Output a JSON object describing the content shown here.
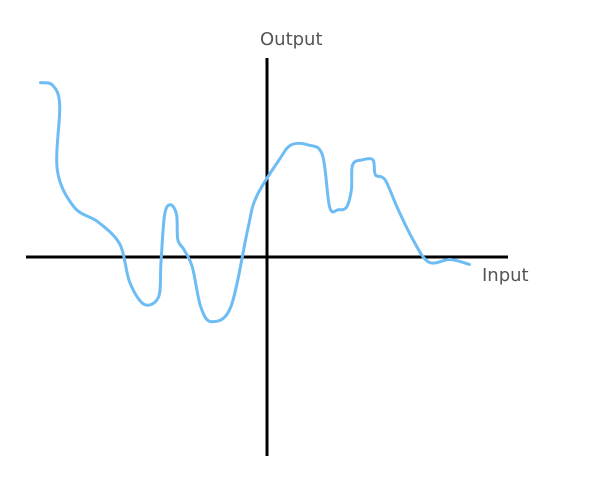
{
  "chart_data": {
    "type": "line",
    "xlabel": "Input",
    "ylabel": "Output",
    "xlim": [
      -10,
      10
    ],
    "ylim": [
      -8,
      8
    ],
    "grid": false,
    "legend": "none",
    "colors": {
      "axis": "#000000",
      "curve": "#6ebcf4",
      "label": "#555555"
    },
    "series": [
      {
        "x": [
          -9.4,
          -8.9,
          -8.6,
          -8.7,
          -8.0,
          -7.0,
          -6.1,
          -5.7,
          -5.1,
          -4.5,
          -4.4,
          -4.25,
          -4.0,
          -3.75,
          -3.7,
          -3.45,
          -3.1,
          -2.75,
          -2.3,
          -1.5,
          -0.8,
          -0.45,
          0.5,
          1.0,
          1.7,
          2.3,
          2.6,
          2.95,
          3.3,
          3.5,
          3.55,
          3.95,
          4.4,
          4.5,
          4.9,
          5.4,
          6.0,
          6.7,
          7.6,
          8.4
        ],
        "y": [
          7.0,
          6.9,
          6.1,
          3.5,
          2.0,
          1.4,
          0.5,
          -1.0,
          -1.9,
          -1.6,
          -0.2,
          1.7,
          2.1,
          1.7,
          0.7,
          0.3,
          -0.4,
          -2.0,
          -2.6,
          -2.0,
          1.1,
          2.4,
          3.9,
          4.5,
          4.5,
          4.1,
          2.0,
          1.9,
          2.0,
          2.7,
          3.7,
          3.9,
          3.9,
          3.3,
          3.1,
          2.0,
          0.8,
          -0.2,
          -0.1,
          -0.3
        ]
      }
    ]
  }
}
